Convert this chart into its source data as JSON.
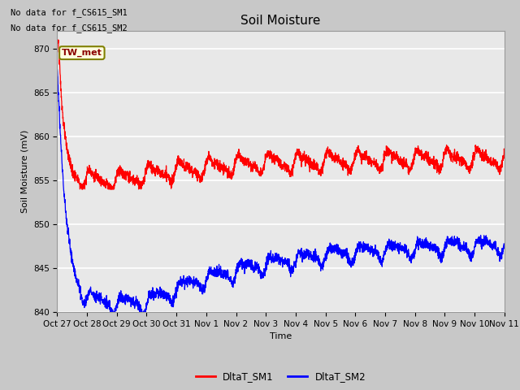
{
  "title": "Soil Moisture",
  "ylabel": "Soil Moisture (mV)",
  "xlabel": "Time",
  "ylim": [
    840,
    872
  ],
  "no_data_text1": "No data for f_CS615_SM1",
  "no_data_text2": "No data for f_CS615_SM2",
  "annotation_text": "TW_met",
  "legend_labels": [
    "DltaT_SM1",
    "DltaT_SM2"
  ],
  "line_colors": [
    "red",
    "blue"
  ],
  "fig_bg_color": "#c8c8c8",
  "plot_bg_color": "#e8e8e8",
  "grid_color": "white",
  "tick_labels": [
    "Oct 27",
    "Oct 28",
    "Oct 29",
    "Oct 30",
    "Oct 31",
    "Nov 1",
    "Nov 2",
    "Nov 3",
    "Nov 4",
    "Nov 5",
    "Nov 6",
    "Nov 7",
    "Nov 8",
    "Nov 9",
    "Nov 10",
    "Nov 11"
  ],
  "title_fontsize": 11,
  "label_fontsize": 8,
  "tick_fontsize": 7.5,
  "legend_fontsize": 8.5,
  "annotation_fontsize": 8,
  "nodata_fontsize": 7.5
}
